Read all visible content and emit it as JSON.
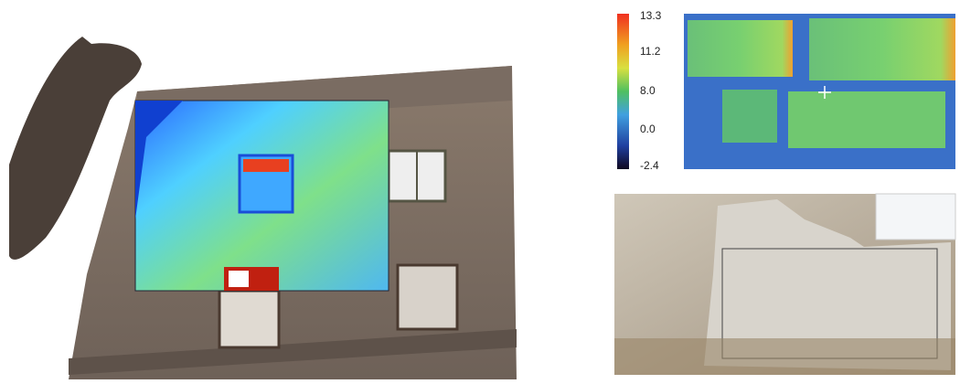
{
  "colorbar": {
    "labels": [
      "13.3",
      "11.2",
      "8.0",
      "0.0",
      "-2.4"
    ]
  }
}
